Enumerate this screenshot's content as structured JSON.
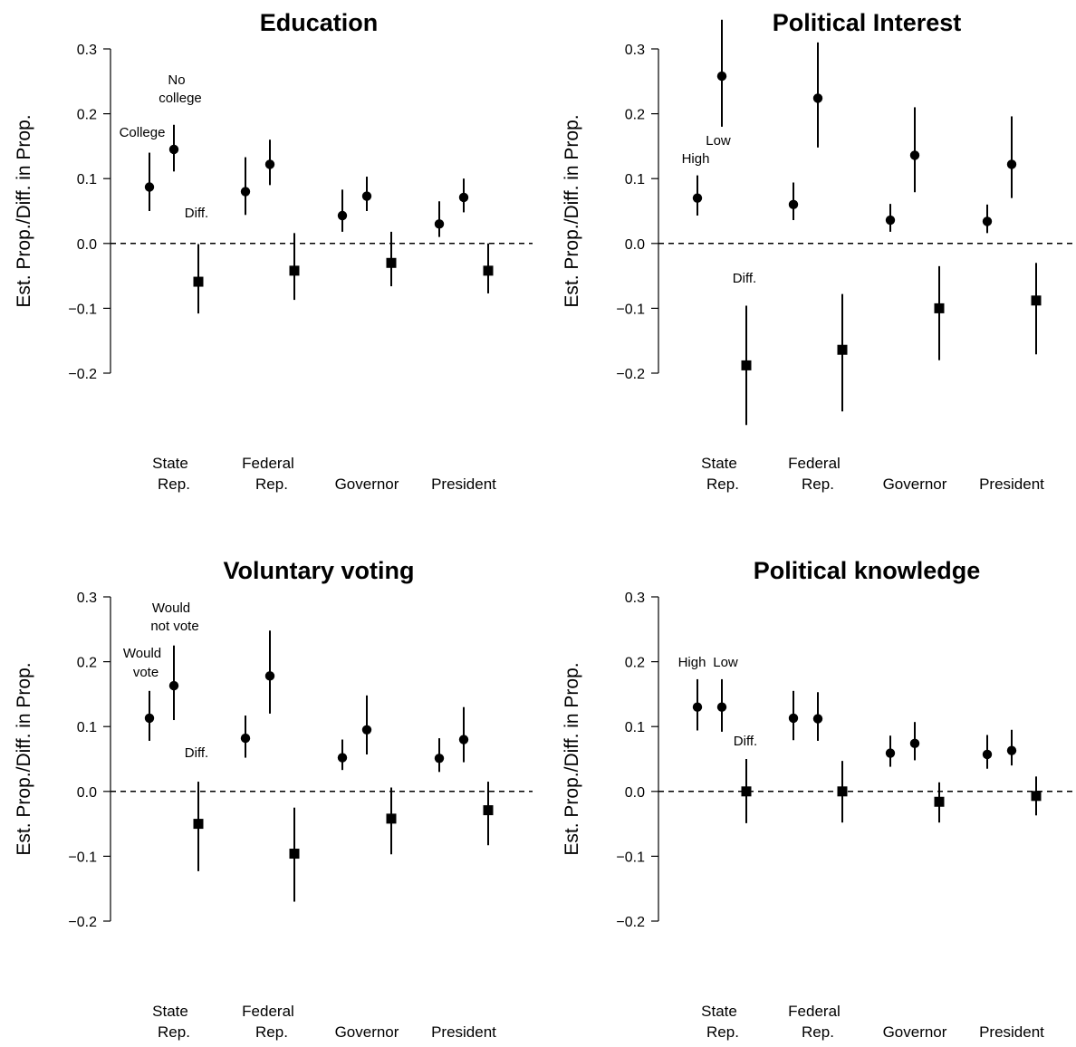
{
  "chart_data": [
    {
      "type": "scatter",
      "title": "Education",
      "ylabel": "Est. Prop./Diff. in Prop.",
      "xlabel": "",
      "ylim": [
        -0.2,
        0.3
      ],
      "yticks": [
        "0.3",
        "0.2",
        "0.1",
        "0.0",
        "−0.1",
        "−0.2"
      ],
      "reference_line": 0.0,
      "categories": [
        [
          "State",
          "Rep."
        ],
        [
          "Federal",
          "Rep."
        ],
        [
          "Governor"
        ],
        [
          "President"
        ]
      ],
      "series": [
        {
          "label": "College",
          "marker": "circle",
          "values": [
            0.087,
            0.08,
            0.043,
            0.03
          ],
          "lower": [
            0.05,
            0.044,
            0.018,
            0.01
          ],
          "upper": [
            0.14,
            0.133,
            0.083,
            0.065
          ]
        },
        {
          "label": [
            "No",
            "college"
          ],
          "marker": "circle",
          "values": [
            0.145,
            0.122,
            0.073,
            0.071
          ],
          "lower": [
            0.111,
            0.09,
            0.05,
            0.048
          ],
          "upper": [
            0.183,
            0.16,
            0.103,
            0.1
          ]
        },
        {
          "label": "Diff.",
          "marker": "square",
          "values": [
            -0.059,
            -0.042,
            -0.03,
            -0.042
          ],
          "lower": [
            -0.108,
            -0.087,
            -0.066,
            -0.077
          ],
          "upper": [
            -0.001,
            0.016,
            0.018,
            0.0
          ]
        }
      ]
    },
    {
      "type": "scatter",
      "title": "Political Interest",
      "ylabel": "Est. Prop./Diff. in Prop.",
      "xlabel": "",
      "ylim": [
        -0.2,
        0.3
      ],
      "yticks": [
        "0.3",
        "0.2",
        "0.1",
        "0.0",
        "−0.1",
        "−0.2"
      ],
      "reference_line": 0.0,
      "categories": [
        [
          "State",
          "Rep."
        ],
        [
          "Federal",
          "Rep."
        ],
        [
          "Governor"
        ],
        [
          "President"
        ]
      ],
      "series": [
        {
          "label": "High",
          "marker": "circle",
          "values": [
            0.07,
            0.06,
            0.036,
            0.034
          ],
          "lower": [
            0.043,
            0.036,
            0.018,
            0.016
          ],
          "upper": [
            0.105,
            0.094,
            0.061,
            0.06
          ]
        },
        {
          "label": "Low",
          "marker": "circle",
          "values": [
            0.258,
            0.224,
            0.136,
            0.122
          ],
          "lower": [
            0.18,
            0.148,
            0.079,
            0.07
          ],
          "upper": [
            0.345,
            0.31,
            0.21,
            0.196
          ]
        },
        {
          "label": "Diff.",
          "marker": "square",
          "values": [
            -0.188,
            -0.164,
            -0.1,
            -0.088
          ],
          "lower": [
            -0.28,
            -0.259,
            -0.18,
            -0.171
          ],
          "upper": [
            -0.096,
            -0.078,
            -0.035,
            -0.03
          ]
        }
      ]
    },
    {
      "type": "scatter",
      "title": "Voluntary voting",
      "ylabel": "Est. Prop./Diff. in Prop.",
      "xlabel": "",
      "ylim": [
        -0.2,
        0.3
      ],
      "yticks": [
        "0.3",
        "0.2",
        "0.1",
        "0.0",
        "−0.1",
        "−0.2"
      ],
      "reference_line": 0.0,
      "categories": [
        [
          "State",
          "Rep."
        ],
        [
          "Federal",
          "Rep."
        ],
        [
          "Governor"
        ],
        [
          "President"
        ]
      ],
      "series": [
        {
          "label": [
            "Would",
            "vote"
          ],
          "marker": "circle",
          "values": [
            0.113,
            0.082,
            0.052,
            0.051
          ],
          "lower": [
            0.078,
            0.052,
            0.033,
            0.03
          ],
          "upper": [
            0.155,
            0.117,
            0.08,
            0.082
          ]
        },
        {
          "label": [
            "Would",
            "not vote"
          ],
          "marker": "circle",
          "values": [
            0.163,
            0.178,
            0.095,
            0.08
          ],
          "lower": [
            0.11,
            0.12,
            0.057,
            0.045
          ],
          "upper": [
            0.225,
            0.248,
            0.148,
            0.13
          ]
        },
        {
          "label": "Diff.",
          "marker": "square",
          "values": [
            -0.05,
            -0.096,
            -0.042,
            -0.029
          ],
          "lower": [
            -0.123,
            -0.17,
            -0.097,
            -0.083
          ],
          "upper": [
            0.015,
            -0.025,
            0.006,
            0.015
          ]
        }
      ]
    },
    {
      "type": "scatter",
      "title": "Political knowledge",
      "ylabel": "Est. Prop./Diff. in Prop.",
      "xlabel": "",
      "ylim": [
        -0.2,
        0.3
      ],
      "yticks": [
        "0.3",
        "0.2",
        "0.1",
        "0.0",
        "−0.1",
        "−0.2"
      ],
      "reference_line": 0.0,
      "categories": [
        [
          "State",
          "Rep."
        ],
        [
          "Federal",
          "Rep."
        ],
        [
          "Governor"
        ],
        [
          "President"
        ]
      ],
      "series": [
        {
          "label": "High",
          "marker": "circle",
          "values": [
            0.13,
            0.113,
            0.059,
            0.057
          ],
          "lower": [
            0.094,
            0.079,
            0.038,
            0.035
          ],
          "upper": [
            0.173,
            0.155,
            0.086,
            0.087
          ]
        },
        {
          "label": "Low",
          "marker": "circle",
          "values": [
            0.13,
            0.112,
            0.074,
            0.063
          ],
          "lower": [
            0.092,
            0.078,
            0.048,
            0.04
          ],
          "upper": [
            0.173,
            0.153,
            0.107,
            0.095
          ]
        },
        {
          "label": "Diff.",
          "marker": "square",
          "values": [
            0.0,
            0.0,
            -0.016,
            -0.007
          ],
          "lower": [
            -0.049,
            -0.048,
            -0.048,
            -0.037
          ],
          "upper": [
            0.05,
            0.047,
            0.014,
            0.023
          ]
        }
      ]
    }
  ]
}
